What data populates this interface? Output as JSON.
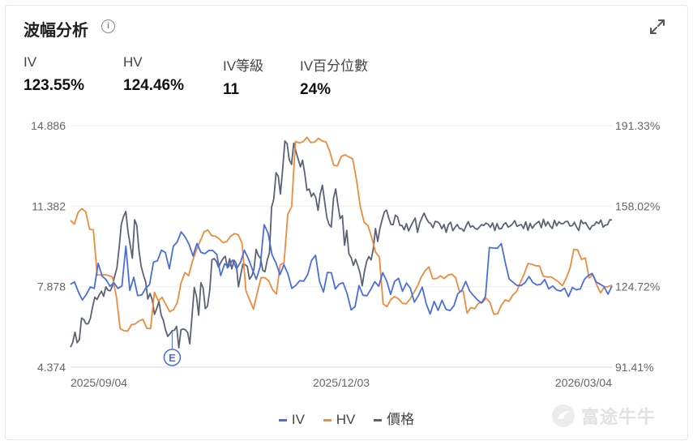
{
  "header": {
    "title": "波幅分析"
  },
  "metrics": [
    {
      "label": "IV",
      "value": "123.55%"
    },
    {
      "label": "HV",
      "value": "124.46%"
    },
    {
      "label": "IV等級",
      "value": "11"
    },
    {
      "label": "IV百分位數",
      "value": "24%"
    }
  ],
  "legend": {
    "iv": "IV",
    "hv": "HV",
    "price": "價格"
  },
  "watermark": "富途牛牛",
  "colors": {
    "iv": "#4a6ee0",
    "hv": "#f08a3c",
    "price": "#5a6273"
  },
  "chart_data": {
    "type": "line",
    "x_labels": [
      "2025/09/04",
      "2025/12/03",
      "2026/03/04"
    ],
    "left_axis": {
      "ticks": [
        "14.886",
        "11.382",
        "7.878",
        "4.374"
      ],
      "range": [
        4.374,
        14.886
      ]
    },
    "right_axis": {
      "ticks": [
        "191.33%",
        "158.02%",
        "124.72%",
        "91.41%"
      ],
      "range": [
        91.41,
        191.33
      ]
    },
    "event_marker": {
      "label": "E",
      "index": 46
    },
    "grid": true,
    "legend_position": "bottom",
    "series": [
      {
        "key": "iv",
        "name": "IV",
        "axis": "right",
        "values": [
          125.7,
          126.7,
          122.5,
          119.2,
          121.5,
          124.6,
          124.0,
          134.4,
          129.1,
          127.6,
          124.9,
          126.3,
          124.0,
          125.0,
          141.5,
          123.2,
          128.6,
          121.0,
          121.3,
          124.0,
          125.6,
          134.9,
          135.4,
          139.8,
          138.9,
          132.1,
          141.4,
          143.2,
          147.4,
          145.3,
          142.2,
          137.4,
          142.6,
          138.9,
          138.4,
          139.7,
          139.7,
          138.1,
          129.3,
          134.2,
          133.0,
          135.7,
          132.1,
          134.8,
          139.8,
          136.3,
          131.9,
          127.8,
          133.0,
          150.4,
          146.8,
          137.8,
          134.5,
          129.7,
          133.8,
          130.0,
          124.0,
          125.2,
          127.2,
          127.0,
          129.7,
          135.6,
          137.7,
          126.9,
          122.5,
          130.6,
          130.5,
          123.8,
          125.8,
          126.3,
          121.8,
          115.1,
          116.5,
          125.2,
          121.2,
          121.0,
          123.7,
          126.8,
          124.9,
          130.5,
          127.1,
          121.5,
          126.9,
          128.2,
          122.8,
          126.2,
          124.1,
          118.3,
          121.0,
          124.5,
          117.7,
          113.4,
          118.6,
          114.9,
          119.1,
          115.4,
          114.8,
          116.8,
          121.8,
          123.2,
          126.9,
          122.9,
          121.0,
          119.2,
          118.0,
          120.7,
          140.9,
          140.7,
          140.6,
          142.5,
          134.7,
          127.9,
          126.5,
          125.2,
          125.2,
          126.3,
          128.9,
          126.4,
          125.4,
          125.7,
          127.7,
          123.8,
          125.0,
          123.4,
          122.9,
          124.1,
          120.6,
          124.4,
          123.4,
          123.8,
          127.7,
          129.3,
          130.2,
          126.7,
          125.7,
          124.8,
          121.6,
          125.0
        ]
      },
      {
        "key": "hv",
        "name": "HV",
        "axis": "right",
        "values": [
          152.1,
          150.6,
          155.5,
          157.0,
          155.7,
          148.5,
          148.2,
          129.6,
          129.5,
          129.7,
          129.3,
          128.7,
          120.8,
          107.4,
          106.5,
          106.4,
          109.0,
          109.3,
          110.6,
          111.2,
          107.5,
          107.4,
          122.4,
          118.9,
          120.3,
          117.4,
          114.4,
          115.2,
          118.1,
          126.3,
          130.5,
          129.3,
          135.3,
          139.8,
          143.5,
          147.3,
          148.2,
          145.8,
          145.6,
          144.5,
          142.9,
          143.4,
          145.6,
          146.7,
          146.2,
          142.6,
          123.1,
          119.2,
          115.4,
          122.4,
          128.5,
          128.4,
          127.1,
          123.5,
          121.7,
          133.8,
          134.5,
          154.7,
          157.8,
          184.8,
          184.2,
          184.7,
          186.5,
          184.4,
          184.5,
          186.1,
          185.0,
          184.6,
          180.6,
          175.0,
          174.7,
          178.6,
          179.3,
          178.4,
          177.6,
          169.0,
          157.9,
          151.4,
          150.0,
          145.1,
          139.0,
          137.0,
          117.6,
          116.5,
          119.4,
          120.6,
          119.7,
          117.9,
          117.6,
          119.5,
          122.2,
          125.0,
          128.8,
          131.3,
          132.9,
          128.0,
          128.1,
          129.2,
          128.1,
          129.5,
          129.9,
          128.5,
          122.7,
          122.9,
          113.8,
          116.1,
          115.6,
          117.9,
          118.2,
          119.9,
          118.2,
          113.3,
          113.5,
          117.1,
          119.2,
          118.7,
          121.3,
          122.7,
          126.5,
          130.1,
          134.3,
          134.0,
          133.4,
          133.3,
          129.0,
          128.7,
          128.8,
          127.8,
          126.7,
          125.1,
          128.2,
          132.4,
          140.2,
          139.9,
          136.0,
          136.6,
          128.3,
          129.7,
          125.5,
          122.1,
          124.6,
          124.7,
          125.4
        ]
      },
      {
        "key": "price",
        "name": "價格",
        "axis": "left",
        "values": [
          5.25,
          5.45,
          5.9,
          5.44,
          5.57,
          6.51,
          6.44,
          6.26,
          6.26,
          6.5,
          7.01,
          7.42,
          7.32,
          7.52,
          7.68,
          7.46,
          7.87,
          7.72,
          7.7,
          7.92,
          8.35,
          8.7,
          9.58,
          10.6,
          10.93,
          11.15,
          10.28,
          9.7,
          9.12,
          10.79,
          10.54,
          9.44,
          8.76,
          8.39,
          8.08,
          7.34,
          7.58,
          7.3,
          6.67,
          6.92,
          7.23,
          6.65,
          6.42,
          6.0,
          5.71,
          5.83,
          5.96,
          5.98,
          6.15,
          5.22,
          6.0,
          6.04,
          6.0,
          5.88,
          5.39,
          6.64,
          7.84,
          7.45,
          6.64,
          8.05,
          7.82,
          6.92,
          7.03,
          7.73,
          9.05,
          9.1,
          8.98,
          8.72,
          8.93,
          9.1,
          9.2,
          8.69,
          9.09,
          8.65,
          9.03,
          8.89,
          7.87,
          8.38,
          8.86,
          8.84,
          8.76,
          8.2,
          8.35,
          8.63,
          9.5,
          9.23,
          9.11,
          8.59,
          8.53,
          9.03,
          9.35,
          11.34,
          11.7,
          12.84,
          12.68,
          11.91,
          12.98,
          14.22,
          14.1,
          13.4,
          13.2,
          14.12,
          13.76,
          13.44,
          13.09,
          13.38,
          12.81,
          12.07,
          12.13,
          11.8,
          11.95,
          11.75,
          11.2,
          11.92,
          12.29,
          11.56,
          10.88,
          10.59,
          10.47,
          11.73,
          12.13,
          11.44,
          10.84,
          10.97,
          9.68,
          10.33,
          9.3,
          9.14,
          8.8,
          9.07,
          8.8,
          8.47,
          7.92,
          8.53,
          8.98,
          9.19,
          9.04,
          9.51,
          10.41,
          9.84,
          10.41,
          10.78,
          11.13,
          11.21,
          10.87,
          10.59,
          10.58,
          10.99,
          10.91,
          10.54,
          10.54,
          10.35,
          10.62,
          10.3,
          10.52,
          10.7,
          10.86,
          10.24,
          10.64,
          10.87,
          11.08,
          10.85,
          10.69,
          10.62,
          10.44,
          10.72,
          10.7,
          10.62,
          10.4,
          10.58,
          10.24,
          10.58,
          10.68,
          10.31,
          10.46,
          10.58,
          10.41,
          10.4,
          10.29,
          10.52,
          10.71,
          10.47,
          10.53,
          10.42,
          10.37,
          10.47,
          10.58,
          10.54,
          10.65,
          10.59,
          10.46,
          10.65,
          10.32,
          10.62,
          10.39,
          10.41,
          10.59,
          10.66,
          10.47,
          10.52,
          10.61,
          10.75,
          10.5,
          10.55,
          10.58,
          10.41,
          10.7,
          10.33,
          10.63,
          10.42,
          10.57,
          10.65,
          10.72,
          10.44,
          10.81,
          10.52,
          10.7,
          10.52,
          10.41,
          10.77,
          10.53,
          10.7,
          10.62,
          10.62,
          10.71,
          10.72,
          10.52,
          10.53,
          10.68,
          10.47,
          10.32,
          10.77,
          10.62,
          10.67,
          10.51,
          10.36,
          10.53,
          10.55,
          10.7,
          10.62,
          10.78,
          10.47,
          10.56,
          10.57,
          10.79,
          10.78
        ]
      }
    ]
  }
}
